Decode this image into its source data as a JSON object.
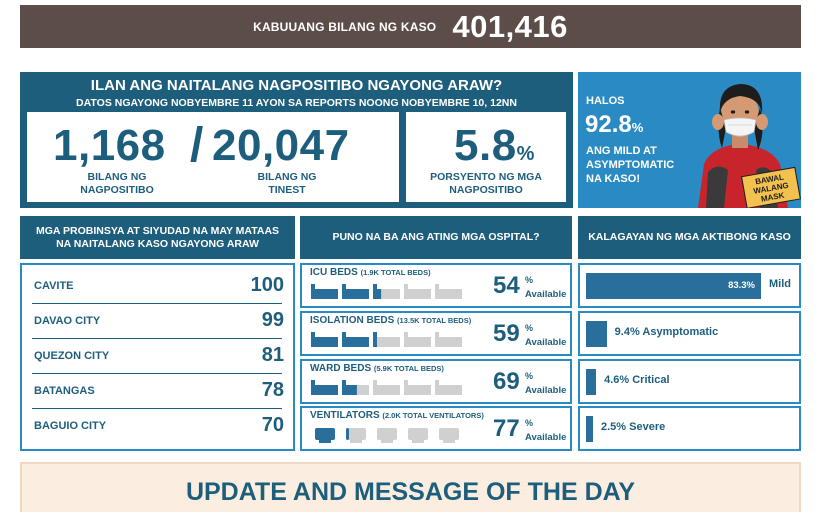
{
  "total_cases": {
    "label": "KABUUANG BILANG NG KASO",
    "value": "401,416"
  },
  "positives": {
    "title": "ILAN ANG NAITALANG NAGPOSITIBO NGAYONG ARAW?",
    "subtitle": "DATOS NGAYONG NOBYEMBRE 11 AYON SA REPORTS NOONG NOBYEMBRE 10, 12NN",
    "positive_count": "1,168",
    "positive_label_line1": "BILANG NG",
    "positive_label_line2": "NAGPOSITIBO",
    "tested_count": "20,047",
    "tested_label_line1": "BILANG NG",
    "tested_label_line2": "TINEST",
    "rate_value": "5.8",
    "rate_sign": "%",
    "rate_label_line1": "PORSYENTO NG MGA",
    "rate_label_line2": "NAGPOSITIBO"
  },
  "mild_promo": {
    "halos": "HALOS",
    "percent": "92.8",
    "percent_sign": "%",
    "text_line1": "ANG MILD AT",
    "text_line2": "ASYMPTOMATIC",
    "text_line3": "NA KASO!",
    "mask_text_line1": "BAWAL",
    "mask_text_line2": "WALANG",
    "mask_text_line3": "MASK"
  },
  "provinces": {
    "header": "MGA PROBINSYA AT SIYUDAD NA MAY MATAAS NA NAITALANG KASO NGAYONG ARAW",
    "rows": [
      {
        "name": "CAVITE",
        "value": "100"
      },
      {
        "name": "DAVAO CITY",
        "value": "99"
      },
      {
        "name": "QUEZON CITY",
        "value": "81"
      },
      {
        "name": "BATANGAS",
        "value": "78"
      },
      {
        "name": "BAGUIO CITY",
        "value": "70"
      }
    ]
  },
  "hospitals": {
    "header": "PUNO NA BA ANG ATING MGA OSPITAL?",
    "available_label": "Available",
    "pct_sign": "%",
    "items": [
      {
        "label": "ICU BEDS",
        "detail": "(1.9K TOTAL BEDS)",
        "percent": "54",
        "occupied_fraction": 0.46,
        "unit_count": 5
      },
      {
        "label": "ISOLATION BEDS",
        "detail": "(13.5K TOTAL BEDS)",
        "percent": "59",
        "occupied_fraction": 0.41,
        "unit_count": 5
      },
      {
        "label": "WARD BEDS",
        "detail": "(5.9K TOTAL BEDS)",
        "percent": "69",
        "occupied_fraction": 0.31,
        "unit_count": 5
      },
      {
        "label": "VENTILATORS",
        "detail": "(2.0K TOTAL VENTILATORS)",
        "percent": "77",
        "occupied_fraction": 0.23,
        "unit_count": 5
      }
    ]
  },
  "active_cases": {
    "header": "KALAGAYAN NG MGA AKTIBONG KASO",
    "items": [
      {
        "label": "Mild",
        "percent": 83.3,
        "text": "83.3%"
      },
      {
        "label": "9.4% Asymptomatic",
        "percent": 9.4,
        "text": ""
      },
      {
        "label": "4.6% Critical",
        "percent": 4.6,
        "text": ""
      },
      {
        "label": "2.5% Severe",
        "percent": 2.5,
        "text": ""
      }
    ]
  },
  "update": {
    "title": "UPDATE AND MESSAGE OF THE DAY"
  },
  "colors": {
    "primary": "#1e5e7d",
    "accent": "#2a8bc4",
    "bar_fill": "#2a6f9c",
    "bar_empty": "#d0d0d0",
    "banner": "#5c4d48"
  }
}
